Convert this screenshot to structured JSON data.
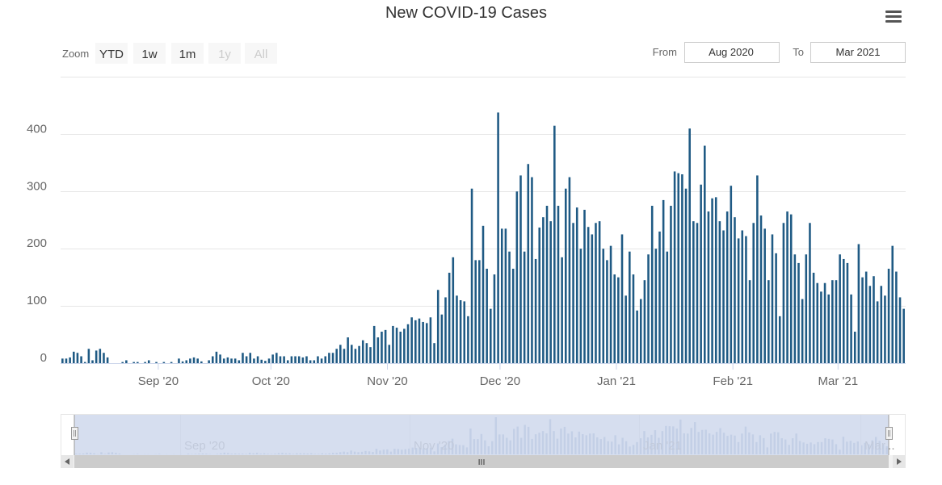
{
  "title": "New COVID-19 Cases",
  "menu_icon": "hamburger-menu-icon",
  "zoom": {
    "label": "Zoom",
    "buttons": [
      {
        "label": "YTD",
        "enabled": true
      },
      {
        "label": "1w",
        "enabled": true
      },
      {
        "label": "1m",
        "enabled": true
      },
      {
        "label": "1y",
        "enabled": false
      },
      {
        "label": "All",
        "enabled": false
      }
    ]
  },
  "range": {
    "from_label": "From",
    "from_value": "Aug 2020",
    "to_label": "To",
    "to_value": "Mar 2021"
  },
  "colors": {
    "bar": "#1f5a84",
    "grid": "#e6e6e6",
    "navigator_mask": "#ccd6eb",
    "navigator_series": "#9fb6d0"
  },
  "chart_data": {
    "type": "bar",
    "title": "New COVID-19 Cases",
    "x_start": "2020-08-06",
    "x_end": "2021-03-06",
    "ylim": [
      0,
      440
    ],
    "yticks": [
      0,
      100,
      200,
      300,
      400
    ],
    "xticks": [
      {
        "label": "Sep '20",
        "date": "2020-09-01"
      },
      {
        "label": "Oct '20",
        "date": "2020-10-01"
      },
      {
        "label": "Nov '20",
        "date": "2020-11-01"
      },
      {
        "label": "Dec '20",
        "date": "2020-12-01"
      },
      {
        "label": "Jan '21",
        "date": "2021-01-01"
      },
      {
        "label": "Feb '21",
        "date": "2021-02-01"
      },
      {
        "label": "Mar '21",
        "date": "2021-03-01"
      }
    ],
    "values": [
      8,
      8,
      10,
      20,
      18,
      12,
      2,
      25,
      5,
      22,
      25,
      18,
      10,
      0,
      0,
      0,
      2,
      5,
      0,
      2,
      2,
      0,
      2,
      5,
      0,
      2,
      0,
      2,
      0,
      2,
      0,
      8,
      3,
      5,
      8,
      10,
      8,
      3,
      0,
      5,
      12,
      20,
      15,
      8,
      10,
      8,
      8,
      5,
      18,
      12,
      18,
      8,
      12,
      6,
      4,
      8,
      15,
      18,
      12,
      12,
      5,
      12,
      12,
      12,
      10,
      12,
      5,
      5,
      12,
      8,
      12,
      18,
      18,
      25,
      32,
      25,
      45,
      32,
      25,
      30,
      40,
      35,
      28,
      65,
      45,
      55,
      58,
      32,
      65,
      62,
      55,
      60,
      68,
      80,
      75,
      78,
      72,
      70,
      80,
      35,
      128,
      85,
      115,
      158,
      185,
      118,
      110,
      108,
      82,
      305,
      180,
      180,
      240,
      165,
      95,
      155,
      438,
      235,
      235,
      195,
      165,
      300,
      328,
      195,
      348,
      325,
      182,
      237,
      255,
      275,
      248,
      415,
      275,
      185,
      305,
      325,
      245,
      272,
      200,
      268,
      238,
      225,
      245,
      248,
      200,
      180,
      205,
      155,
      150,
      225,
      118,
      195,
      155,
      92,
      112,
      145,
      190,
      275,
      200,
      230,
      285,
      195,
      275,
      335,
      332,
      330,
      305,
      410,
      248,
      245,
      312,
      380,
      265,
      288,
      290,
      248,
      232,
      265,
      310,
      255,
      218,
      232,
      222,
      145,
      245,
      328,
      258,
      235,
      145,
      225,
      192,
      82,
      245,
      265,
      260,
      190,
      175,
      112,
      190,
      245,
      158,
      140,
      125,
      140,
      120,
      145,
      145,
      190,
      182,
      175,
      120,
      55,
      208,
      150,
      160,
      135,
      152,
      108,
      135,
      118,
      165,
      205,
      160,
      115,
      95
    ]
  },
  "navigator": {
    "labels": [
      "Sep '20",
      "Nov '20",
      "Jan '21",
      "Mar..."
    ],
    "scroll_grip": "III"
  }
}
